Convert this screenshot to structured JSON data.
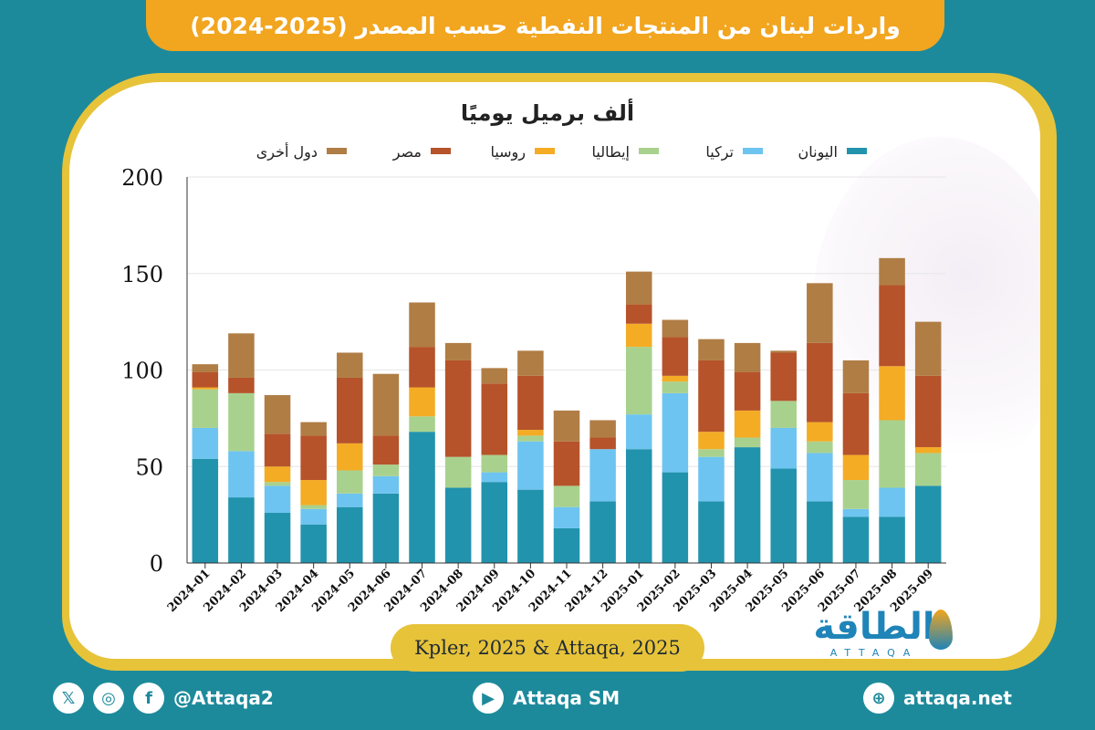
{
  "title": "واردات لبنان من المنتجات النفطية حسب المصدر (2025-2024)",
  "source": "Kpler, 2025 & Attaqa, 2025",
  "logo": {
    "arabic": "الطاقة",
    "latin": "ATTAQA"
  },
  "footer": {
    "handle": "@Attaqa2",
    "youtube": "Attaqa SM",
    "website": "attaqa.net"
  },
  "colors": {
    "background": "#1d8a9b",
    "title_bar": "#f2a51f",
    "frame": "#e7c33a"
  },
  "chart_data": {
    "type": "bar",
    "stacked": true,
    "ylabel": "ألف برميل يوميًا",
    "ylim": [
      0,
      200
    ],
    "yticks": [
      0,
      50,
      100,
      150,
      200
    ],
    "grid": true,
    "legend_position": "top",
    "categories": [
      "2024-01",
      "2024-02",
      "2024-03",
      "2024-04",
      "2024-05",
      "2024-06",
      "2024-07",
      "2024-08",
      "2024-09",
      "2024-10",
      "2024-11",
      "2024-12",
      "2025-01",
      "2025-02",
      "2025-03",
      "2025-04",
      "2025-05",
      "2025-06",
      "2025-07",
      "2025-08",
      "2025-09"
    ],
    "series": [
      {
        "name": "اليونان",
        "color": "#2293ad",
        "values": [
          54,
          34,
          26,
          20,
          29,
          36,
          68,
          39,
          42,
          38,
          18,
          32,
          59,
          47,
          32,
          60,
          49,
          32,
          24,
          24,
          40
        ]
      },
      {
        "name": "تركيا",
        "color": "#6ec4f0",
        "values": [
          16,
          24,
          14,
          8,
          7,
          9,
          0,
          0,
          5,
          25,
          11,
          27,
          18,
          41,
          23,
          0,
          21,
          25,
          4,
          15,
          0
        ]
      },
      {
        "name": "إيطاليا",
        "color": "#a9d18e",
        "values": [
          20,
          30,
          2,
          2,
          12,
          6,
          8,
          16,
          9,
          3,
          11,
          0,
          35,
          6,
          4,
          5,
          14,
          6,
          15,
          35,
          17
        ]
      },
      {
        "name": "روسيا",
        "color": "#f4ac25",
        "values": [
          1,
          0,
          8,
          13,
          14,
          0,
          15,
          0,
          0,
          3,
          0,
          0,
          12,
          3,
          9,
          14,
          0,
          10,
          13,
          28,
          3
        ]
      },
      {
        "name": "مصر",
        "color": "#b6532a",
        "values": [
          8,
          8,
          17,
          23,
          34,
          15,
          21,
          50,
          37,
          28,
          23,
          6,
          10,
          20,
          37,
          20,
          25,
          41,
          32,
          42,
          37
        ]
      },
      {
        "name": "دول أخرى",
        "color": "#b07d45",
        "values": [
          4,
          23,
          20,
          7,
          13,
          32,
          23,
          9,
          8,
          13,
          16,
          9,
          17,
          9,
          11,
          15,
          1,
          31,
          17,
          14,
          28
        ]
      }
    ]
  }
}
